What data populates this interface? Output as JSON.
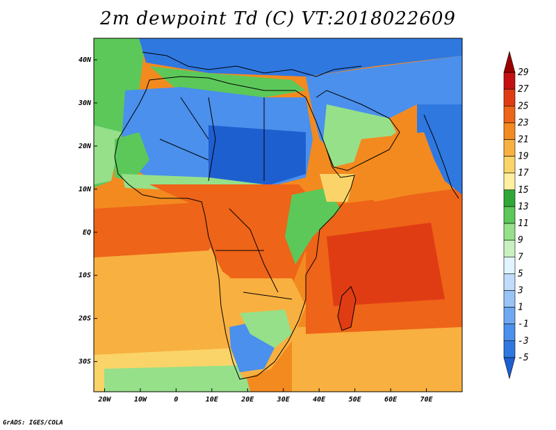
{
  "title": "2m dewpoint Td (C) VT:2018022609",
  "footer": "GrADS: IGES/COLA",
  "map": {
    "lon_range": [
      -23,
      80
    ],
    "lat_range": [
      -37,
      45
    ],
    "x_ticks": [
      {
        "value": -20,
        "label": "20W"
      },
      {
        "value": -10,
        "label": "10W"
      },
      {
        "value": 0,
        "label": "0"
      },
      {
        "value": 10,
        "label": "10E"
      },
      {
        "value": 20,
        "label": "20E"
      },
      {
        "value": 30,
        "label": "30E"
      },
      {
        "value": 40,
        "label": "40E"
      },
      {
        "value": 50,
        "label": "50E"
      },
      {
        "value": 60,
        "label": "60E"
      },
      {
        "value": 70,
        "label": "70E"
      }
    ],
    "y_ticks": [
      {
        "value": 40,
        "label": "40N"
      },
      {
        "value": 30,
        "label": "30N"
      },
      {
        "value": 20,
        "label": "20N"
      },
      {
        "value": 10,
        "label": "10N"
      },
      {
        "value": 0,
        "label": "EQ"
      },
      {
        "value": -10,
        "label": "10S"
      },
      {
        "value": -20,
        "label": "20S"
      },
      {
        "value": -30,
        "label": "30S"
      }
    ]
  },
  "colorbar": {
    "levels": [
      -5,
      -3,
      -1,
      1,
      3,
      5,
      7,
      9,
      11,
      13,
      15,
      17,
      19,
      21,
      23,
      25,
      27,
      29
    ],
    "labels": [
      "-5",
      "-3",
      "-1",
      "1",
      "3",
      "5",
      "7",
      "9",
      "11",
      "13",
      "15",
      "17",
      "19",
      "21",
      "23",
      "25",
      "27",
      "29"
    ],
    "colors": [
      "#1e5fd0",
      "#2f78e0",
      "#4a90ec",
      "#6fa8f2",
      "#98c4f6",
      "#c0dcfa",
      "#e0f5ff",
      "#c8f0c0",
      "#96e08a",
      "#5cc85a",
      "#2fa838",
      "#fff0a0",
      "#fad468",
      "#f8b040",
      "#f38a20",
      "#ee6418",
      "#e03c14",
      "#c41010",
      "#9a0000"
    ]
  }
}
